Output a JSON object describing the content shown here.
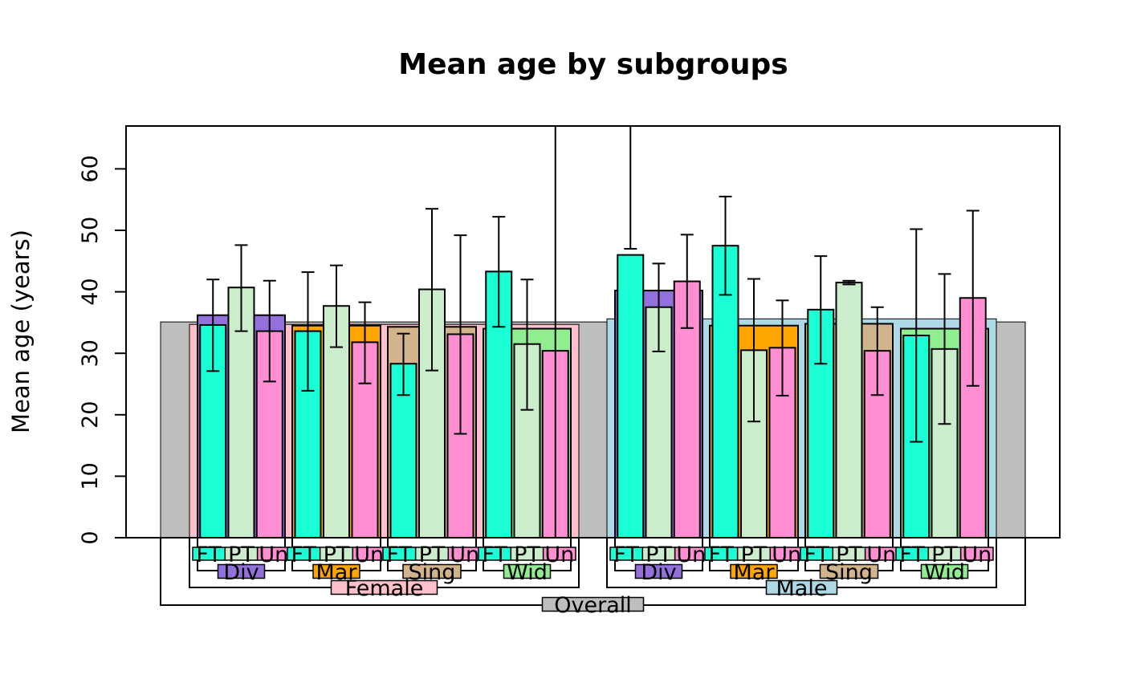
{
  "chart_data": {
    "type": "bar",
    "title": "Mean age by subgroups",
    "xlabel": "",
    "ylabel": "Mean age (years)",
    "ylim": [
      0,
      67
    ],
    "yticks": [
      0,
      10,
      20,
      30,
      40,
      50,
      60
    ],
    "grid": false,
    "legend": "none",
    "colors": {
      "overall": "#bebebe",
      "female": "#ffc0cb",
      "male": "#add8e6",
      "Div": "#9370db",
      "Mar": "#ffa500",
      "Sing": "#d2b48c",
      "Wid": "#90ee90",
      "FT": "#1affd5",
      "PT": "#ccedcc",
      "Un": "#ff8fd2"
    },
    "overall": {
      "label": "Overall",
      "mean": 35.1
    },
    "sexes": [
      {
        "label": "Female",
        "key": "female",
        "mean": 34.7,
        "statuses": [
          {
            "label": "Div",
            "mean": 36.2,
            "work": [
              {
                "label": "FT",
                "mean": 34.6,
                "lo": 27.1,
                "hi": 42.0
              },
              {
                "label": "PT",
                "mean": 40.7,
                "lo": 33.6,
                "hi": 47.6
              },
              {
                "label": "Un",
                "mean": 33.6,
                "lo": 25.4,
                "hi": 41.8
              }
            ]
          },
          {
            "label": "Mar",
            "mean": 34.5,
            "work": [
              {
                "label": "FT",
                "mean": 33.6,
                "lo": 23.9,
                "hi": 43.2
              },
              {
                "label": "PT",
                "mean": 37.7,
                "lo": 31.0,
                "hi": 44.3
              },
              {
                "label": "Un",
                "mean": 31.8,
                "lo": 25.1,
                "hi": 38.3
              }
            ]
          },
          {
            "label": "Sing",
            "mean": 34.3,
            "work": [
              {
                "label": "FT",
                "mean": 28.3,
                "lo": 23.2,
                "hi": 33.2
              },
              {
                "label": "PT",
                "mean": 40.4,
                "lo": 27.2,
                "hi": 53.5
              },
              {
                "label": "Un",
                "mean": 33.1,
                "lo": 16.9,
                "hi": 49.2
              }
            ]
          },
          {
            "label": "Wid",
            "mean": 34.0,
            "work": [
              {
                "label": "FT",
                "mean": 43.3,
                "lo": 34.3,
                "hi": 52.2
              },
              {
                "label": "PT",
                "mean": 31.5,
                "lo": 20.8,
                "hi": 42.0
              },
              {
                "label": "Un",
                "mean": 30.4,
                "lo": 0,
                "hi": 67
              }
            ]
          }
        ]
      },
      {
        "label": "Male",
        "key": "male",
        "mean": 35.6,
        "statuses": [
          {
            "label": "Div",
            "mean": 40.2,
            "work": [
              {
                "label": "FT",
                "mean": 46.0,
                "lo": 47,
                "hi": 67
              },
              {
                "label": "PT",
                "mean": 37.5,
                "lo": 30.3,
                "hi": 44.6
              },
              {
                "label": "Un",
                "mean": 41.7,
                "lo": 34.1,
                "hi": 49.3
              }
            ]
          },
          {
            "label": "Mar",
            "mean": 34.5,
            "work": [
              {
                "label": "FT",
                "mean": 47.5,
                "lo": 39.5,
                "hi": 55.5
              },
              {
                "label": "PT",
                "mean": 30.5,
                "lo": 18.9,
                "hi": 42.1
              },
              {
                "label": "Un",
                "mean": 30.9,
                "lo": 23.1,
                "hi": 38.6
              }
            ]
          },
          {
            "label": "Sing",
            "mean": 34.8,
            "work": [
              {
                "label": "FT",
                "mean": 37.1,
                "lo": 28.3,
                "hi": 45.8
              },
              {
                "label": "PT",
                "mean": 41.5,
                "lo": 41.2,
                "hi": 41.8
              },
              {
                "label": "Un",
                "mean": 30.4,
                "lo": 23.2,
                "hi": 37.5
              }
            ]
          },
          {
            "label": "Wid",
            "mean": 34.0,
            "work": [
              {
                "label": "FT",
                "mean": 32.9,
                "lo": 15.6,
                "hi": 50.2
              },
              {
                "label": "PT",
                "mean": 30.7,
                "lo": 18.5,
                "hi": 42.9
              },
              {
                "label": "Un",
                "mean": 39.0,
                "lo": 24.7,
                "hi": 53.2
              }
            ]
          }
        ]
      }
    ],
    "work_labels": {
      "FT": "FT",
      "PT": "PT",
      "Un": "Un"
    }
  }
}
